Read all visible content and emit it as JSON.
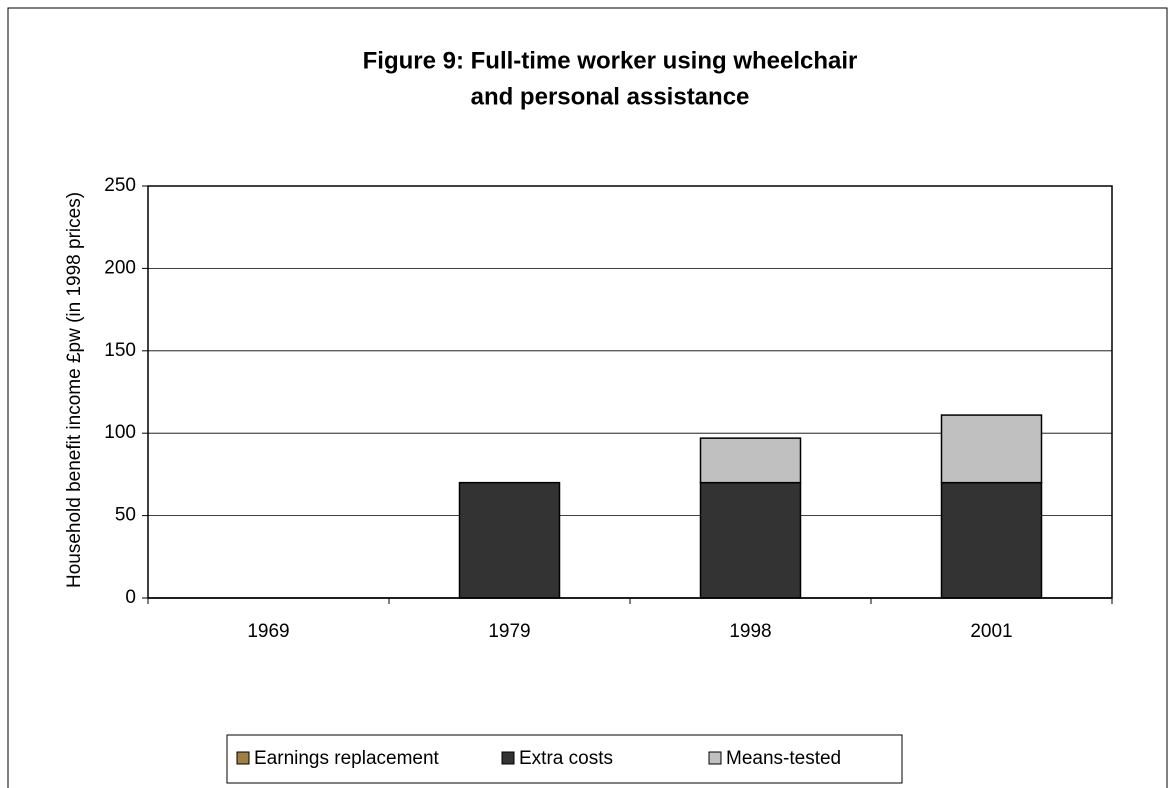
{
  "chart_data": {
    "type": "stacked_bar",
    "title": [
      "Figure 9: Full-time worker using wheelchair",
      "and personal assistance"
    ],
    "y_label": "Household benefit income £pw (in 1998 prices)",
    "categories": [
      "1969",
      "1979",
      "1998",
      "2001"
    ],
    "series": [
      {
        "name": "Earnings replacement",
        "color": "#a08040",
        "values": [
          0,
          0,
          0,
          0
        ]
      },
      {
        "name": "Extra costs",
        "color": "#333333",
        "values": [
          0,
          70,
          70,
          70
        ]
      },
      {
        "name": "Means-tested",
        "color": "#c0c0c0",
        "values": [
          0,
          0,
          27,
          41
        ]
      }
    ],
    "ylim": [
      0,
      250
    ],
    "yticks": [
      0,
      50,
      100,
      150,
      200,
      250
    ],
    "grid": true,
    "legend": "bottom"
  }
}
